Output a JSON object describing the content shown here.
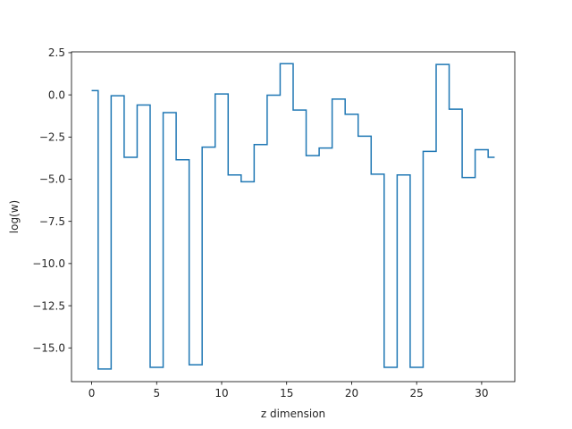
{
  "chart_data": {
    "type": "line",
    "drawstyle": "steps-mid",
    "xlabel": "z dimension",
    "ylabel": "log(w)",
    "xlim": [
      -1.55,
      32.55
    ],
    "ylim": [
      -17.0,
      2.55
    ],
    "xticks": [
      0,
      5,
      10,
      15,
      20,
      25,
      30
    ],
    "xtick_labels": [
      "0",
      "5",
      "10",
      "15",
      "20",
      "25",
      "30"
    ],
    "yticks": [
      2.5,
      0.0,
      -2.5,
      -5.0,
      -7.5,
      -10.0,
      -12.5,
      -15.0
    ],
    "ytick_labels": [
      "2.5",
      "0.0",
      "−2.5",
      "−5.0",
      "−7.5",
      "−10.0",
      "−12.5",
      "−15.0"
    ],
    "line_color": "#1f77b4",
    "series": [
      {
        "x": [
          0,
          1,
          2,
          3,
          4,
          5,
          6,
          7,
          8,
          9,
          10,
          11,
          12,
          13,
          14,
          15,
          16,
          17,
          18,
          19,
          20,
          21,
          22,
          23,
          24,
          25,
          26,
          27,
          28,
          29,
          30,
          31
        ],
        "values": [
          0.25,
          -16.25,
          -0.05,
          -3.7,
          -0.6,
          -16.15,
          -1.05,
          -3.85,
          -16.0,
          -3.1,
          0.05,
          -4.75,
          -5.15,
          -2.95,
          -0.02,
          1.85,
          -0.9,
          -3.6,
          -3.15,
          -0.25,
          -1.15,
          -2.45,
          -4.7,
          -16.15,
          -4.75,
          -16.15,
          -3.35,
          1.8,
          -0.85,
          -4.9,
          -3.25,
          -3.7
        ]
      }
    ],
    "grid": false
  }
}
